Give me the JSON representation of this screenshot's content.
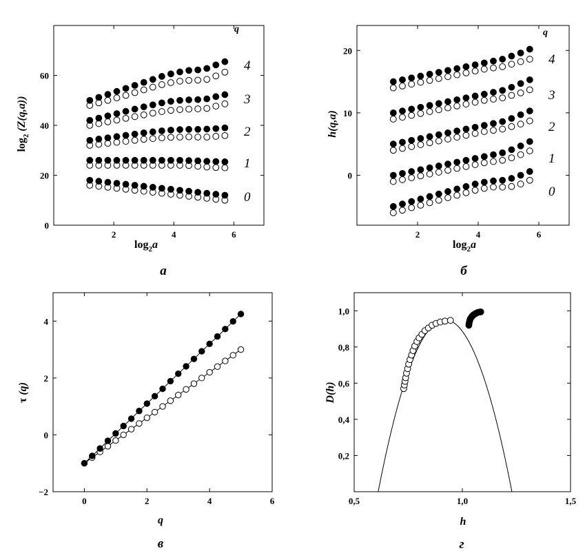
{
  "chart_data": [
    {
      "panel_label": "а",
      "type": "scatter",
      "xlabel": "log2a",
      "xlabel_parts": {
        "base": "log",
        "sub": "2",
        "var": "a"
      },
      "ylabel": "log2 (Z(q,a))",
      "ylabel_parts": {
        "base": "log",
        "sub": "2",
        "rest": " (Z(q,a))"
      },
      "xlim": [
        0,
        7
      ],
      "ylim": [
        0,
        80
      ],
      "xticks": [
        2,
        4,
        6
      ],
      "yticks": [
        0,
        20,
        40,
        60
      ],
      "xtick_labels": [
        "2",
        "4",
        "6"
      ],
      "ytick_labels": [
        "0",
        "20",
        "40",
        "60"
      ],
      "legend_title": "q",
      "q_labels": [
        "4",
        "3",
        "2",
        "1",
        "0"
      ],
      "x": [
        1.2,
        1.5,
        1.8,
        2.1,
        2.4,
        2.7,
        3.0,
        3.3,
        3.6,
        3.9,
        4.2,
        4.5,
        4.8,
        5.1,
        5.4,
        5.7
      ],
      "series": [
        {
          "q": 4,
          "filled": [
            50,
            51.2,
            52.4,
            53.6,
            54.8,
            56,
            57.2,
            58.4,
            59.6,
            60.6,
            61.4,
            62,
            62.2,
            62.8,
            64.2,
            65.5
          ],
          "open": [
            48,
            49,
            50,
            51,
            52,
            53.1,
            54.2,
            55.3,
            56.3,
            57.1,
            57.7,
            58,
            58.1,
            58.4,
            59.8,
            61.3
          ]
        },
        {
          "q": 3,
          "filled": [
            42,
            42.9,
            43.8,
            44.7,
            45.6,
            46.5,
            47.4,
            48.2,
            49,
            49.6,
            50,
            50.2,
            50.3,
            50.6,
            51.5,
            52.3
          ],
          "open": [
            40,
            40.7,
            41.4,
            42.1,
            42.8,
            43.5,
            44.2,
            44.9,
            45.5,
            46,
            46.3,
            46.5,
            46.6,
            46.8,
            47.7,
            48.6
          ]
        },
        {
          "q": 2,
          "filled": [
            34,
            34.5,
            35,
            35.5,
            36,
            36.5,
            37,
            37.4,
            37.8,
            38.1,
            38.3,
            38.4,
            38.4,
            38.5,
            38.7,
            39
          ],
          "open": [
            32,
            32.4,
            32.8,
            33.2,
            33.6,
            34,
            34.4,
            34.7,
            35,
            35.2,
            35.3,
            35.4,
            35.3,
            35.3,
            35.6,
            35.9
          ]
        },
        {
          "q": 1,
          "filled": [
            26,
            26,
            26,
            26,
            26,
            26,
            26,
            26,
            26,
            26,
            26,
            25.9,
            25.8,
            25.6,
            25.5,
            25.4
          ],
          "open": [
            24,
            24,
            24,
            24,
            24,
            24,
            24,
            24,
            24,
            24,
            24,
            23.9,
            23.6,
            23.3,
            23.1,
            23
          ]
        },
        {
          "q": 0,
          "filled": [
            18,
            17.6,
            17.2,
            16.8,
            16.4,
            16,
            15.6,
            15.2,
            14.8,
            14.4,
            14,
            13.6,
            13.2,
            12.8,
            12.4,
            12
          ],
          "open": [
            16,
            15.6,
            15.2,
            14.8,
            14.4,
            14,
            13.6,
            13.2,
            12.8,
            12.4,
            12,
            11.6,
            11.2,
            10.8,
            10.4,
            10
          ]
        }
      ]
    },
    {
      "panel_label": "б",
      "type": "scatter",
      "xlabel": "log2a",
      "xlabel_parts": {
        "base": "log",
        "sub": "2",
        "var": "a"
      },
      "ylabel": "h(q,a)",
      "xlim": [
        0,
        7
      ],
      "ylim": [
        -8,
        24
      ],
      "xticks": [
        2,
        4,
        6
      ],
      "yticks": [
        0,
        10,
        20
      ],
      "xtick_labels": [
        "2",
        "4",
        "6"
      ],
      "ytick_labels": [
        "0",
        "10",
        "20"
      ],
      "legend_title": "q",
      "q_labels": [
        "4",
        "3",
        "2",
        "1",
        "0"
      ],
      "x": [
        1.2,
        1.5,
        1.8,
        2.1,
        2.4,
        2.7,
        3.0,
        3.3,
        3.6,
        3.9,
        4.2,
        4.5,
        4.8,
        5.1,
        5.4,
        5.7
      ],
      "series": [
        {
          "q": 4,
          "filled": [
            15,
            15.3,
            15.6,
            15.9,
            16.2,
            16.5,
            16.8,
            17.1,
            17.4,
            17.7,
            18,
            18.3,
            18.6,
            19.1,
            19.6,
            20.2
          ],
          "open": [
            14,
            14.3,
            14.6,
            14.9,
            15.2,
            15.5,
            15.8,
            16.1,
            16.4,
            16.7,
            17,
            17.2,
            17.4,
            17.8,
            18.2,
            18.6
          ]
        },
        {
          "q": 3,
          "filled": [
            10,
            10.3,
            10.6,
            10.9,
            11.2,
            11.5,
            11.8,
            12.1,
            12.4,
            12.7,
            13,
            13.3,
            13.6,
            14.1,
            14.7,
            15.3
          ],
          "open": [
            9,
            9.3,
            9.6,
            9.9,
            10.2,
            10.5,
            10.8,
            11.1,
            11.4,
            11.7,
            12,
            12.2,
            12.4,
            12.8,
            13.2,
            13.7
          ]
        },
        {
          "q": 2,
          "filled": [
            5,
            5.3,
            5.6,
            5.9,
            6.2,
            6.5,
            6.8,
            7.1,
            7.4,
            7.7,
            8,
            8.3,
            8.6,
            9.1,
            9.7,
            10.3
          ],
          "open": [
            4,
            4.3,
            4.6,
            4.9,
            5.2,
            5.5,
            5.8,
            6.1,
            6.4,
            6.7,
            7,
            7.2,
            7.4,
            7.8,
            8.2,
            8.7
          ]
        },
        {
          "q": 1,
          "filled": [
            0,
            0.3,
            0.6,
            0.9,
            1.2,
            1.5,
            1.8,
            2.1,
            2.4,
            2.7,
            3,
            3.3,
            3.6,
            4.1,
            4.7,
            5.4
          ],
          "open": [
            -1,
            -0.7,
            -0.4,
            -0.1,
            0.2,
            0.5,
            0.8,
            1.1,
            1.4,
            1.7,
            2,
            2.2,
            2.4,
            2.8,
            3.3,
            3.9
          ]
        },
        {
          "q": 0,
          "filled": [
            -5,
            -4.6,
            -4.2,
            -3.8,
            -3.4,
            -3,
            -2.6,
            -2.2,
            -1.8,
            -1.4,
            -1.1,
            -0.9,
            -0.8,
            -0.5,
            0,
            0.6
          ],
          "open": [
            -6,
            -5.6,
            -5.2,
            -4.8,
            -4.4,
            -4,
            -3.6,
            -3.2,
            -2.8,
            -2.4,
            -2.1,
            -1.9,
            -1.9,
            -1.8,
            -1.4,
            -0.8
          ]
        }
      ]
    },
    {
      "panel_label": "в",
      "type": "line",
      "xlabel": "q",
      "ylabel": "τ (q)",
      "ylabel_parts": {
        "greek": "τ",
        "rest": " (q)"
      },
      "xlim": [
        -1,
        6
      ],
      "ylim": [
        -2,
        5
      ],
      "xticks": [
        0,
        2,
        4,
        6
      ],
      "yticks": [
        -2,
        0,
        2,
        4
      ],
      "xtick_labels": [
        "0",
        "2",
        "4",
        "6"
      ],
      "ytick_labels": [
        "−2",
        "0",
        "2",
        "4"
      ],
      "q": [
        0,
        0.25,
        0.5,
        0.75,
        1,
        1.25,
        1.5,
        1.75,
        2,
        2.25,
        2.5,
        2.75,
        3,
        3.25,
        3.5,
        3.75,
        4,
        4.25,
        4.5,
        4.75,
        5
      ],
      "series": [
        {
          "name": "filled",
          "tau": [
            -1,
            -0.74,
            -0.48,
            -0.21,
            0.05,
            0.31,
            0.57,
            0.84,
            1.1,
            1.36,
            1.62,
            1.89,
            2.15,
            2.41,
            2.67,
            2.94,
            3.2,
            3.46,
            3.72,
            3.99,
            4.25
          ]
        },
        {
          "name": "open",
          "tau": [
            -1,
            -0.8,
            -0.6,
            -0.4,
            -0.2,
            0,
            0.2,
            0.4,
            0.6,
            0.8,
            1,
            1.2,
            1.4,
            1.6,
            1.8,
            2,
            2.2,
            2.4,
            2.6,
            2.8,
            3
          ]
        }
      ]
    },
    {
      "panel_label": "г",
      "type": "scatter",
      "xlabel": "h",
      "ylabel": "D(h)",
      "xlim": [
        0.5,
        1.5
      ],
      "ylim": [
        0,
        1.1
      ],
      "xticks": [
        0.5,
        1.0,
        1.5
      ],
      "yticks": [
        0.2,
        0.4,
        0.6,
        0.8,
        1.0
      ],
      "xtick_labels": [
        "0,5",
        "1,0",
        "1,5"
      ],
      "ytick_labels": [
        "0,2",
        "0,4",
        "0,6",
        "0,8",
        "1,0"
      ],
      "curve": {
        "vertex_h": 0.92,
        "vertex_D": 0.95,
        "roots": [
          0.611,
          1.229
        ]
      },
      "open": [
        [
          0.729,
          0.57
        ],
        [
          0.732,
          0.59
        ],
        [
          0.735,
          0.61
        ],
        [
          0.738,
          0.63
        ],
        [
          0.742,
          0.655
        ],
        [
          0.747,
          0.68
        ],
        [
          0.752,
          0.705
        ],
        [
          0.758,
          0.73
        ],
        [
          0.765,
          0.755
        ],
        [
          0.772,
          0.78
        ],
        [
          0.78,
          0.805
        ],
        [
          0.79,
          0.83
        ],
        [
          0.8,
          0.85
        ],
        [
          0.813,
          0.87
        ],
        [
          0.827,
          0.89
        ],
        [
          0.843,
          0.905
        ],
        [
          0.86,
          0.92
        ],
        [
          0.878,
          0.93
        ],
        [
          0.898,
          0.938
        ],
        [
          0.92,
          0.943
        ],
        [
          0.945,
          0.947
        ]
      ],
      "filled": [
        [
          1.03,
          0.92
        ],
        [
          1.031,
          0.93
        ],
        [
          1.033,
          0.94
        ],
        [
          1.035,
          0.95
        ],
        [
          1.038,
          0.958
        ],
        [
          1.042,
          0.965
        ],
        [
          1.046,
          0.971
        ],
        [
          1.05,
          0.976
        ],
        [
          1.055,
          0.98
        ],
        [
          1.06,
          0.984
        ],
        [
          1.065,
          0.987
        ],
        [
          1.07,
          0.99
        ],
        [
          1.075,
          0.992
        ],
        [
          1.08,
          0.993
        ],
        [
          1.085,
          0.994
        ]
      ]
    }
  ]
}
